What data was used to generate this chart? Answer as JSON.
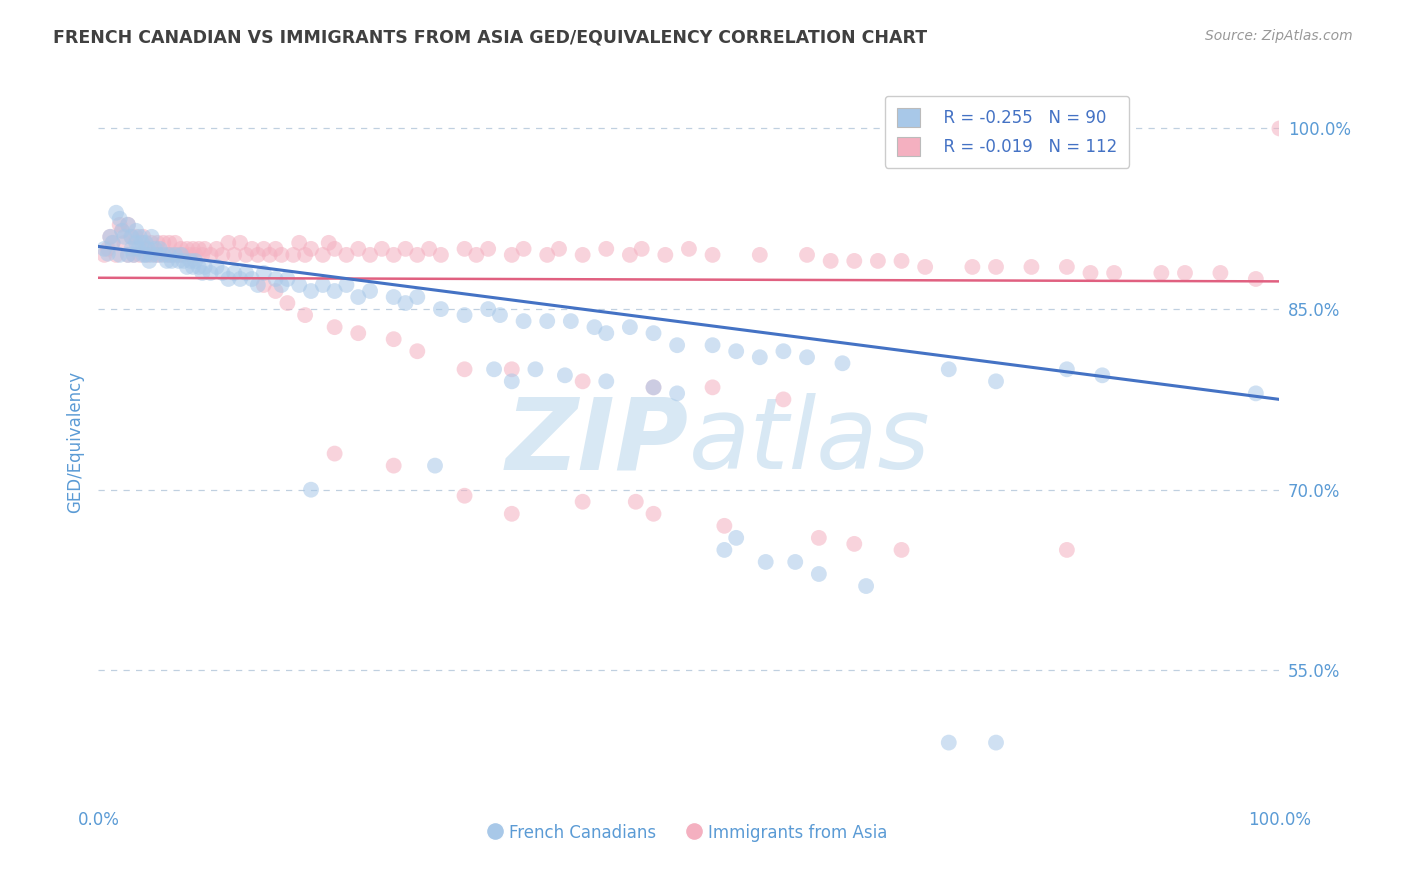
{
  "title": "FRENCH CANADIAN VS IMMIGRANTS FROM ASIA GED/EQUIVALENCY CORRELATION CHART",
  "source": "Source: ZipAtlas.com",
  "ylabel": "GED/Equivalency",
  "ytick_labels": [
    "55.0%",
    "70.0%",
    "85.0%",
    "100.0%"
  ],
  "ytick_values": [
    0.55,
    0.7,
    0.85,
    1.0
  ],
  "xtick_labels": [
    "0.0%",
    "100.0%"
  ],
  "xtick_values": [
    0.0,
    1.0
  ],
  "legend_blue_r": "R = -0.255",
  "legend_blue_n": "N = 90",
  "legend_pink_r": "R = -0.019",
  "legend_pink_n": "N = 112",
  "legend_blue_label": "French Canadians",
  "legend_pink_label": "Immigrants from Asia",
  "blue_color": "#A8C8E8",
  "pink_color": "#F4B0C0",
  "blue_line_color": "#4472C4",
  "pink_line_color": "#E06080",
  "title_color": "#404040",
  "axis_label_color": "#5B9BD5",
  "watermark_color": "#D8E8F4",
  "background_color": "#FFFFFF",
  "grid_color": "#C0D0E0",
  "blue_trend_y0": 0.902,
  "blue_trend_y1": 0.775,
  "pink_trend_y0": 0.876,
  "pink_trend_y1": 0.873,
  "xlim": [
    0.0,
    1.0
  ],
  "ylim": [
    0.44,
    1.04
  ],
  "marker_size": 130,
  "marker_alpha": 0.55,
  "blue_x": [
    0.005,
    0.008,
    0.01,
    0.012,
    0.015,
    0.018,
    0.018,
    0.02,
    0.022,
    0.025,
    0.025,
    0.028,
    0.028,
    0.03,
    0.032,
    0.032,
    0.034,
    0.035,
    0.037,
    0.038,
    0.04,
    0.04,
    0.042,
    0.043,
    0.045,
    0.045,
    0.048,
    0.05,
    0.052,
    0.055,
    0.058,
    0.06,
    0.062,
    0.065,
    0.068,
    0.07,
    0.072,
    0.075,
    0.078,
    0.08,
    0.082,
    0.085,
    0.088,
    0.09,
    0.095,
    0.1,
    0.105,
    0.11,
    0.115,
    0.12,
    0.125,
    0.13,
    0.135,
    0.14,
    0.15,
    0.155,
    0.16,
    0.17,
    0.18,
    0.19,
    0.2,
    0.21,
    0.22,
    0.23,
    0.25,
    0.26,
    0.27,
    0.29,
    0.31,
    0.33,
    0.34,
    0.36,
    0.38,
    0.4,
    0.42,
    0.43,
    0.45,
    0.47,
    0.49,
    0.52,
    0.54,
    0.56,
    0.58,
    0.6,
    0.63,
    0.72,
    0.76,
    0.82,
    0.85,
    0.98
  ],
  "blue_y": [
    0.9,
    0.896,
    0.91,
    0.905,
    0.93,
    0.925,
    0.895,
    0.915,
    0.91,
    0.92,
    0.895,
    0.91,
    0.9,
    0.895,
    0.915,
    0.905,
    0.9,
    0.91,
    0.905,
    0.895,
    0.905,
    0.895,
    0.9,
    0.89,
    0.91,
    0.895,
    0.9,
    0.895,
    0.9,
    0.895,
    0.89,
    0.895,
    0.89,
    0.895,
    0.89,
    0.895,
    0.89,
    0.885,
    0.89,
    0.885,
    0.89,
    0.885,
    0.88,
    0.885,
    0.88,
    0.885,
    0.88,
    0.875,
    0.88,
    0.875,
    0.88,
    0.875,
    0.87,
    0.88,
    0.875,
    0.87,
    0.875,
    0.87,
    0.865,
    0.87,
    0.865,
    0.87,
    0.86,
    0.865,
    0.86,
    0.855,
    0.86,
    0.85,
    0.845,
    0.85,
    0.845,
    0.84,
    0.84,
    0.84,
    0.835,
    0.83,
    0.835,
    0.83,
    0.82,
    0.82,
    0.815,
    0.81,
    0.815,
    0.81,
    0.805,
    0.8,
    0.79,
    0.8,
    0.795,
    0.78
  ],
  "blue_x_outliers": [
    0.18,
    0.285,
    0.335,
    0.35,
    0.37,
    0.395,
    0.43,
    0.47,
    0.49,
    0.53,
    0.54,
    0.565,
    0.59,
    0.61,
    0.65,
    0.72,
    0.76
  ],
  "blue_y_outliers": [
    0.7,
    0.72,
    0.8,
    0.79,
    0.8,
    0.795,
    0.79,
    0.785,
    0.78,
    0.65,
    0.66,
    0.64,
    0.64,
    0.63,
    0.62,
    0.49,
    0.49
  ],
  "pink_x": [
    0.005,
    0.008,
    0.01,
    0.012,
    0.015,
    0.018,
    0.02,
    0.022,
    0.025,
    0.025,
    0.028,
    0.03,
    0.032,
    0.034,
    0.035,
    0.038,
    0.04,
    0.042,
    0.045,
    0.048,
    0.05,
    0.052,
    0.055,
    0.058,
    0.06,
    0.062,
    0.065,
    0.068,
    0.07,
    0.072,
    0.075,
    0.078,
    0.08,
    0.082,
    0.085,
    0.088,
    0.09,
    0.095,
    0.1,
    0.105,
    0.11,
    0.115,
    0.12,
    0.125,
    0.13,
    0.135,
    0.14,
    0.145,
    0.15,
    0.155,
    0.165,
    0.17,
    0.175,
    0.18,
    0.19,
    0.195,
    0.2,
    0.21,
    0.22,
    0.23,
    0.24,
    0.25,
    0.26,
    0.27,
    0.28,
    0.29,
    0.31,
    0.32,
    0.33,
    0.35,
    0.36,
    0.38,
    0.39,
    0.41,
    0.43,
    0.45,
    0.46,
    0.48,
    0.5,
    0.52,
    0.56,
    0.6,
    0.62,
    0.64,
    0.66,
    0.68,
    0.7,
    0.74,
    0.76,
    0.79,
    0.82,
    0.84,
    0.86,
    0.9,
    0.92,
    0.95,
    0.98,
    1.0,
    0.14,
    0.15,
    0.16,
    0.175,
    0.2,
    0.22,
    0.25,
    0.27,
    0.31,
    0.35,
    0.41,
    0.47,
    0.52,
    0.58
  ],
  "pink_y": [
    0.895,
    0.9,
    0.91,
    0.905,
    0.895,
    0.92,
    0.915,
    0.905,
    0.92,
    0.895,
    0.91,
    0.895,
    0.91,
    0.9,
    0.895,
    0.91,
    0.9,
    0.895,
    0.905,
    0.895,
    0.905,
    0.895,
    0.905,
    0.895,
    0.905,
    0.895,
    0.905,
    0.895,
    0.9,
    0.895,
    0.9,
    0.895,
    0.9,
    0.895,
    0.9,
    0.895,
    0.9,
    0.895,
    0.9,
    0.895,
    0.905,
    0.895,
    0.905,
    0.895,
    0.9,
    0.895,
    0.9,
    0.895,
    0.9,
    0.895,
    0.895,
    0.905,
    0.895,
    0.9,
    0.895,
    0.905,
    0.9,
    0.895,
    0.9,
    0.895,
    0.9,
    0.895,
    0.9,
    0.895,
    0.9,
    0.895,
    0.9,
    0.895,
    0.9,
    0.895,
    0.9,
    0.895,
    0.9,
    0.895,
    0.9,
    0.895,
    0.9,
    0.895,
    0.9,
    0.895,
    0.895,
    0.895,
    0.89,
    0.89,
    0.89,
    0.89,
    0.885,
    0.885,
    0.885,
    0.885,
    0.885,
    0.88,
    0.88,
    0.88,
    0.88,
    0.88,
    0.875,
    1.0,
    0.87,
    0.865,
    0.855,
    0.845,
    0.835,
    0.83,
    0.825,
    0.815,
    0.8,
    0.8,
    0.79,
    0.785,
    0.785,
    0.775
  ],
  "pink_x_outliers": [
    0.2,
    0.25,
    0.31,
    0.35,
    0.41,
    0.455,
    0.47,
    0.53,
    0.61,
    0.64,
    0.68,
    0.82
  ],
  "pink_y_outliers": [
    0.73,
    0.72,
    0.695,
    0.68,
    0.69,
    0.69,
    0.68,
    0.67,
    0.66,
    0.655,
    0.65,
    0.65
  ]
}
